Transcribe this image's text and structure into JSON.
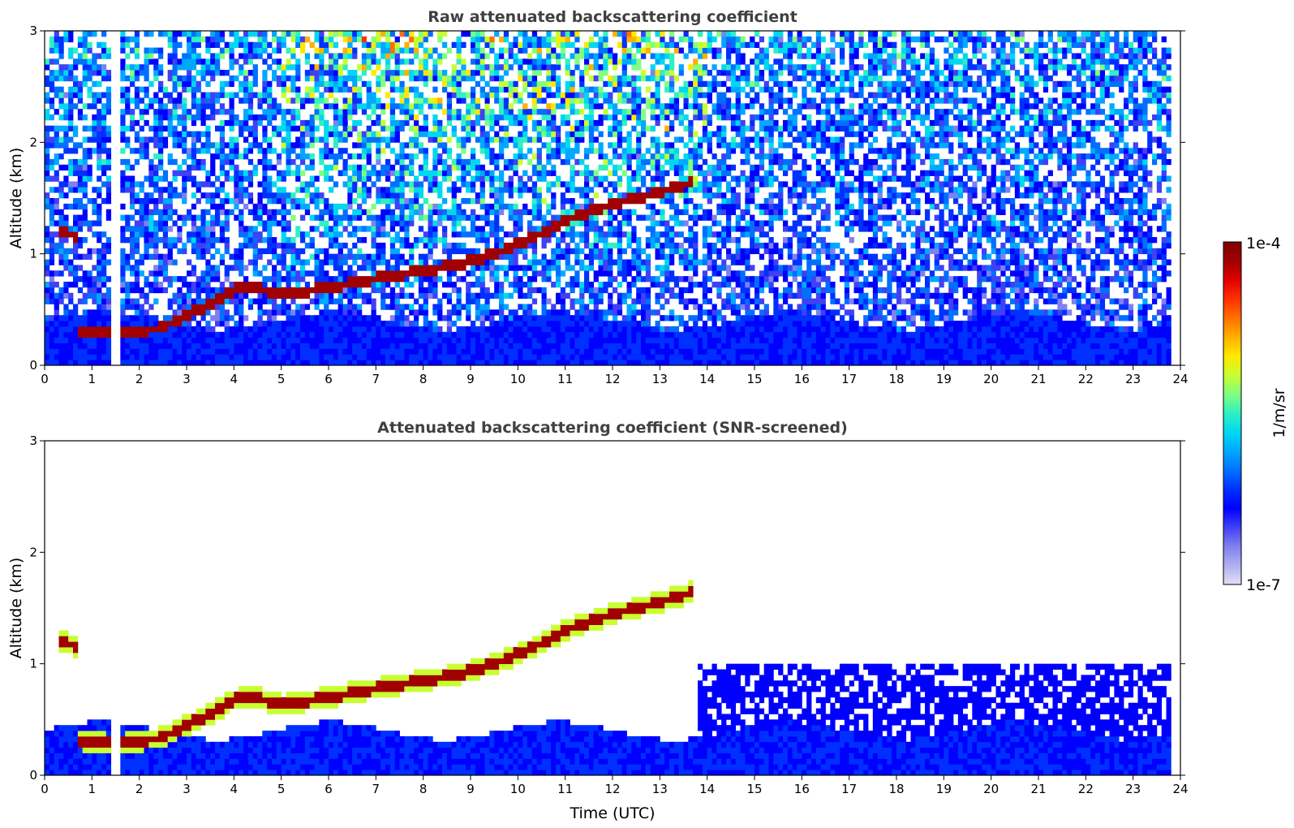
{
  "chart_data": [
    {
      "type": "heatmap",
      "title": "Raw attenuated backscattering coefficient",
      "xlabel": "",
      "ylabel": "Altitude (km)",
      "xlim": [
        0,
        24
      ],
      "ylim": [
        0,
        3
      ],
      "xticks": [
        "0",
        "1",
        "2",
        "3",
        "4",
        "5",
        "6",
        "7",
        "8",
        "9",
        "10",
        "11",
        "12",
        "13",
        "14",
        "15",
        "16",
        "17",
        "18",
        "19",
        "20",
        "21",
        "22",
        "23",
        "24"
      ],
      "yticks": [
        "0",
        "1",
        "2",
        "3"
      ],
      "data_end_time": 23.8,
      "missing_time_interval": [
        1.43,
        1.55
      ],
      "cloud_layer": [
        {
          "t": 0.35,
          "alt": 1.2
        },
        {
          "t": 0.7,
          "alt": 1.15
        },
        {
          "t": 0.75,
          "alt": 0.32
        },
        {
          "t": 1.5,
          "alt": 0.27
        },
        {
          "t": 2.5,
          "alt": 0.34
        },
        {
          "t": 3.0,
          "alt": 0.45
        },
        {
          "t": 3.5,
          "alt": 0.55
        },
        {
          "t": 4.0,
          "alt": 0.68
        },
        {
          "t": 4.5,
          "alt": 0.7
        },
        {
          "t": 5.0,
          "alt": 0.63
        },
        {
          "t": 6.0,
          "alt": 0.7
        },
        {
          "t": 7.0,
          "alt": 0.78
        },
        {
          "t": 8.0,
          "alt": 0.85
        },
        {
          "t": 8.7,
          "alt": 0.9
        },
        {
          "t": 9.5,
          "alt": 1.0
        },
        {
          "t": 10.5,
          "alt": 1.18
        },
        {
          "t": 11.0,
          "alt": 1.3
        },
        {
          "t": 12.0,
          "alt": 1.45
        },
        {
          "t": 13.0,
          "alt": 1.55
        },
        {
          "t": 13.7,
          "alt": 1.65
        }
      ]
    },
    {
      "type": "heatmap",
      "title": "Attenuated backscattering coefficient (SNR-screened)",
      "xlabel": "Time (UTC)",
      "ylabel": "Altitude (km)",
      "xlim": [
        0,
        24
      ],
      "ylim": [
        0,
        3
      ],
      "xticks": [
        "0",
        "1",
        "2",
        "3",
        "4",
        "5",
        "6",
        "7",
        "8",
        "9",
        "10",
        "11",
        "12",
        "13",
        "14",
        "15",
        "16",
        "17",
        "18",
        "19",
        "20",
        "21",
        "22",
        "23",
        "24"
      ],
      "yticks": [
        "0",
        "1",
        "2",
        "3"
      ],
      "data_end_time": 23.8,
      "missing_time_interval": [
        1.43,
        1.55
      ],
      "cloud_layer": [
        {
          "t": 0.35,
          "alt": 1.2
        },
        {
          "t": 0.7,
          "alt": 1.15
        },
        {
          "t": 0.75,
          "alt": 0.32
        },
        {
          "t": 1.5,
          "alt": 0.27
        },
        {
          "t": 2.5,
          "alt": 0.34
        },
        {
          "t": 3.0,
          "alt": 0.45
        },
        {
          "t": 3.5,
          "alt": 0.55
        },
        {
          "t": 4.0,
          "alt": 0.68
        },
        {
          "t": 4.5,
          "alt": 0.7
        },
        {
          "t": 5.0,
          "alt": 0.63
        },
        {
          "t": 6.0,
          "alt": 0.7
        },
        {
          "t": 7.0,
          "alt": 0.78
        },
        {
          "t": 8.0,
          "alt": 0.85
        },
        {
          "t": 8.7,
          "alt": 0.9
        },
        {
          "t": 9.5,
          "alt": 1.0
        },
        {
          "t": 10.5,
          "alt": 1.18
        },
        {
          "t": 11.0,
          "alt": 1.3
        },
        {
          "t": 12.0,
          "alt": 1.45
        },
        {
          "t": 13.0,
          "alt": 1.55
        },
        {
          "t": 13.7,
          "alt": 1.65
        }
      ]
    }
  ],
  "colorbar": {
    "label": "1/m/sr",
    "max_label": "1e-4",
    "min_label": "1e-7",
    "scale": "log",
    "colors": [
      "#e0e0f5",
      "#b0b0f0",
      "#8080f0",
      "#4040f5",
      "#0000ff",
      "#0030ff",
      "#0070ff",
      "#00a8ff",
      "#00d8f0",
      "#30f0c0",
      "#80ff80",
      "#c8ff30",
      "#ffe800",
      "#ffb000",
      "#ff7000",
      "#ff3000",
      "#e00000",
      "#a00000",
      "#800000"
    ]
  }
}
